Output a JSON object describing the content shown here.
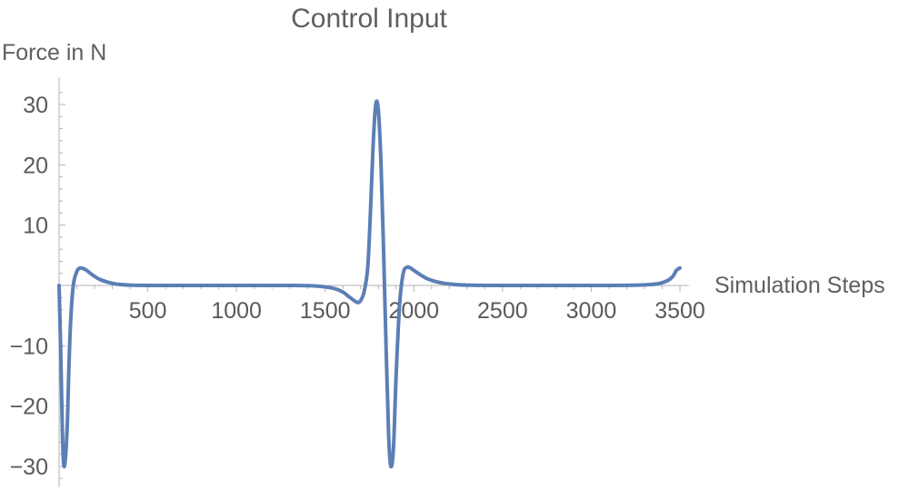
{
  "chart_data": {
    "type": "line",
    "title": "Control Input",
    "xlabel": "Simulation Steps",
    "ylabel": "Force in N",
    "xlim": [
      0,
      3550
    ],
    "ylim": [
      -33,
      33
    ],
    "x_ticks": [
      500,
      1000,
      1500,
      2000,
      2500,
      3000,
      3500
    ],
    "x_tick_labels": [
      "500",
      "1000",
      "1500",
      "2000",
      "2500",
      "3000",
      "3500"
    ],
    "y_ticks": [
      -30,
      -20,
      -10,
      10,
      20,
      30
    ],
    "y_tick_labels": [
      "−30",
      "−20",
      "−10",
      "10",
      "20",
      "30"
    ],
    "grid": false,
    "line_color": "#5b7fb5",
    "series": [
      {
        "x": [
          0,
          10,
          20,
          30,
          45,
          55,
          65,
          80,
          100,
          120,
          150,
          190,
          230,
          280,
          330,
          400,
          500,
          700,
          900,
          1100,
          1300,
          1450,
          1550,
          1600,
          1640,
          1680,
          1700,
          1720,
          1740,
          1755,
          1770,
          1785,
          1800,
          1815,
          1830,
          1845,
          1858,
          1870,
          1885,
          1900,
          1920,
          1940,
          1960,
          1980,
          2020,
          2070,
          2130,
          2200,
          2300,
          2500,
          2800,
          3100,
          3300,
          3380,
          3430,
          3460,
          3480,
          3500
        ],
        "y": [
          0,
          -12,
          -26,
          -30,
          -24,
          -14,
          -6,
          0,
          2.3,
          2.9,
          2.6,
          1.7,
          1.0,
          0.5,
          0.2,
          0.05,
          0,
          0,
          0,
          0,
          0,
          -0.1,
          -0.5,
          -1.1,
          -2.0,
          -2.8,
          -2.5,
          -1.0,
          3,
          12,
          23,
          30,
          29,
          20,
          5,
          -12,
          -25,
          -30,
          -27,
          -15,
          -3,
          2,
          3,
          2.9,
          2.1,
          1.2,
          0.6,
          0.25,
          0.05,
          0,
          0,
          0,
          0.1,
          0.3,
          0.8,
          1.5,
          2.5,
          2.9
        ]
      }
    ]
  }
}
